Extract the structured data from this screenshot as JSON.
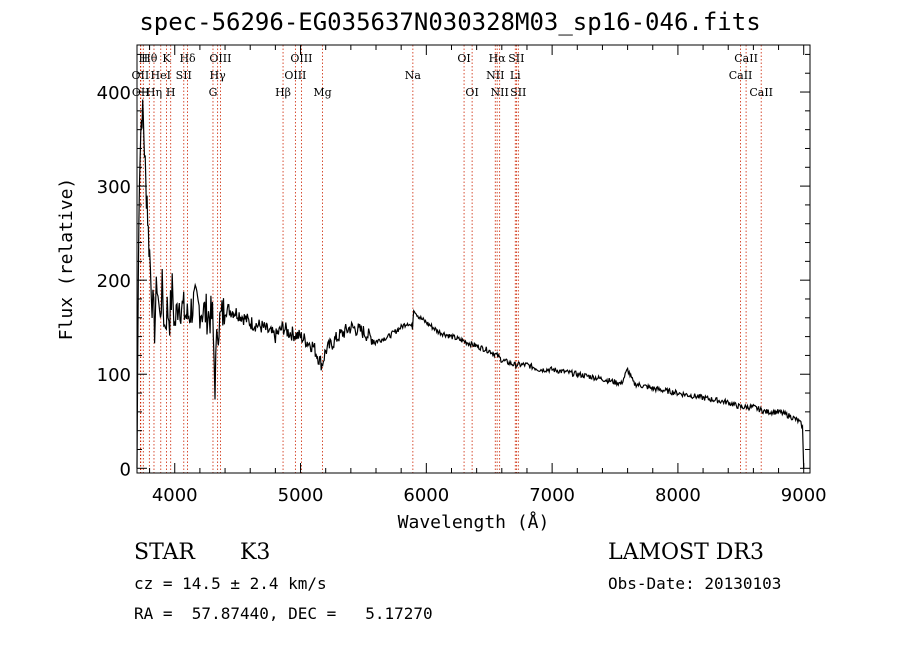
{
  "chart_data": {
    "type": "line",
    "title": "spec-56296-EG035637N030328M03_sp16-046.fits",
    "xlabel": "Wavelength (Å)",
    "ylabel": "Flux (relative)",
    "xlim": [
      3700,
      9050
    ],
    "ylim": [
      -5,
      450
    ],
    "xticks": [
      4000,
      5000,
      6000,
      7000,
      8000,
      9000
    ],
    "yticks": [
      0,
      100,
      200,
      300,
      400
    ],
    "series": [
      {
        "name": "flux",
        "x": [
          3700,
          3710,
          3720,
          3730,
          3740,
          3750,
          3760,
          3770,
          3780,
          3790,
          3800,
          3820,
          3840,
          3860,
          3880,
          3900,
          3920,
          3940,
          3960,
          3980,
          4000,
          4030,
          4060,
          4100,
          4150,
          4200,
          4250,
          4300,
          4320,
          4340,
          4400,
          4500,
          4600,
          4700,
          4800,
          4860,
          4900,
          5000,
          5100,
          5170,
          5200,
          5300,
          5400,
          5500,
          5600,
          5700,
          5800,
          5850,
          5890,
          5900,
          5920,
          5950,
          6000,
          6100,
          6200,
          6300,
          6400,
          6500,
          6563,
          6600,
          6700,
          6800,
          6900,
          7000,
          7200,
          7400,
          7550,
          7600,
          7650,
          7800,
          8000,
          8200,
          8400,
          8500,
          8600,
          8700,
          8800,
          8900,
          8960,
          8990,
          9000
        ],
        "values": [
          0,
          200,
          320,
          360,
          380,
          370,
          340,
          300,
          290,
          250,
          230,
          180,
          150,
          200,
          160,
          190,
          150,
          170,
          160,
          190,
          150,
          180,
          170,
          160,
          175,
          170,
          165,
          160,
          90,
          150,
          170,
          165,
          155,
          150,
          140,
          150,
          145,
          140,
          130,
          110,
          125,
          140,
          150,
          145,
          135,
          140,
          150,
          155,
          150,
          170,
          165,
          160,
          155,
          145,
          140,
          135,
          130,
          125,
          120,
          115,
          110,
          110,
          105,
          105,
          100,
          95,
          90,
          105,
          90,
          85,
          80,
          75,
          70,
          65,
          65,
          60,
          60,
          55,
          50,
          45,
          0
        ]
      }
    ],
    "lines": [
      {
        "w": 3727,
        "label": "OII",
        "row": 2
      },
      {
        "w": 3730,
        "label": "OII",
        "row": 3
      },
      {
        "w": 3750,
        "label": "H",
        "row": 1
      },
      {
        "w": 3798,
        "label": "Hθ",
        "row": 1
      },
      {
        "w": 3835,
        "label": "Hη",
        "row": 3
      },
      {
        "w": 3889,
        "label": "HeI",
        "row": 2
      },
      {
        "w": 3934,
        "label": "K",
        "row": 1
      },
      {
        "w": 3968,
        "label": "H",
        "row": 3
      },
      {
        "w": 4072,
        "label": "SII",
        "row": 2
      },
      {
        "w": 4102,
        "label": "Hδ",
        "row": 1
      },
      {
        "w": 4304,
        "label": "G",
        "row": 3
      },
      {
        "w": 4341,
        "label": "Hγ",
        "row": 2
      },
      {
        "w": 4363,
        "label": "OIII",
        "row": 1
      },
      {
        "w": 4861,
        "label": "Hβ",
        "row": 3
      },
      {
        "w": 4959,
        "label": "OIII",
        "row": 2
      },
      {
        "w": 5007,
        "label": "OIII",
        "row": 1
      },
      {
        "w": 5175,
        "label": "Mg",
        "row": 3
      },
      {
        "w": 5893,
        "label": "Na",
        "row": 2
      },
      {
        "w": 6300,
        "label": "OI",
        "row": 1
      },
      {
        "w": 6364,
        "label": "OI",
        "row": 3
      },
      {
        "w": 6548,
        "label": "NII",
        "row": 2
      },
      {
        "w": 6563,
        "label": "Hα",
        "row": 1
      },
      {
        "w": 6583,
        "label": "NII",
        "row": 3
      },
      {
        "w": 6707,
        "label": "Li",
        "row": 2
      },
      {
        "w": 6716,
        "label": "SII",
        "row": 1
      },
      {
        "w": 6731,
        "label": "SII",
        "row": 3
      },
      {
        "w": 8498,
        "label": "CaII",
        "row": 2
      },
      {
        "w": 8542,
        "label": "CaII",
        "row": 1
      },
      {
        "w": 8662,
        "label": "CaII",
        "row": 3
      }
    ]
  },
  "info": {
    "class": "STAR",
    "subclass": "K3",
    "cz_line": "cz = 14.5 ± 2.4 km/s",
    "coord_line": "RA =  57.87440, DEC =   5.17270",
    "survey": "LAMOST DR3",
    "obs_date_line": "Obs-Date: 20130103"
  },
  "colors": {
    "line_marker": "#cc2200",
    "spectrum": "#000000"
  }
}
